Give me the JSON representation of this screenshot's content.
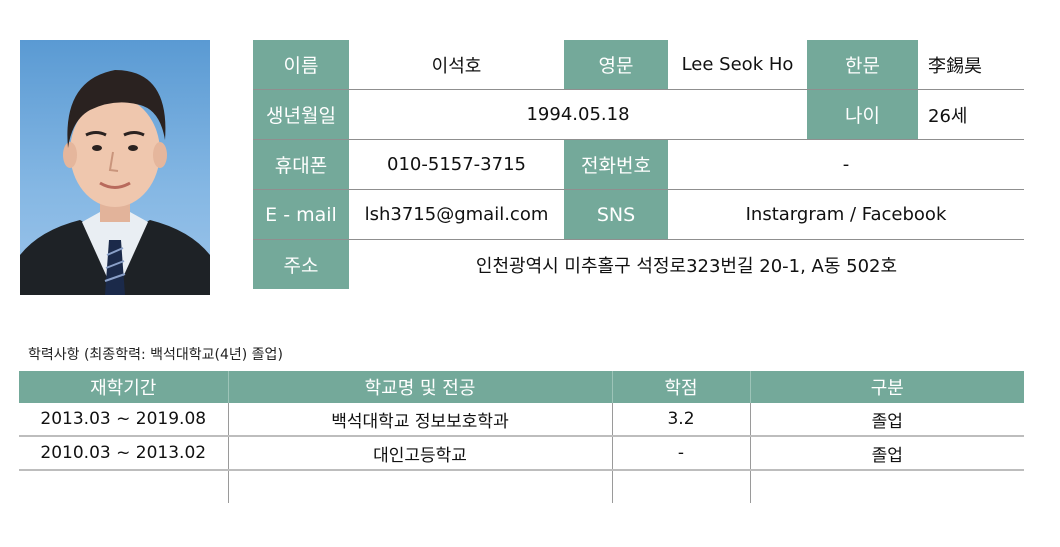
{
  "profile": {
    "name_label": "이름",
    "name": "이석호",
    "eng_label": "영문",
    "eng": "Lee Seok Ho",
    "hanja_label": "한문",
    "hanja": "李錫昊",
    "birth_label": "생년월일",
    "birth": "1994.05.18",
    "age_label": "나이",
    "age": "26세",
    "mobile_label": "휴대폰",
    "mobile": "010-5157-3715",
    "phone_label": "전화번호",
    "phone": "-",
    "email_label": "E - mail",
    "email": "lsh3715@gmail.com",
    "sns_label": "SNS",
    "sns": "Instargram / Facebook",
    "address_label": "주소",
    "address": "인천광역시 미추홀구 석정로323번길 20-1, A동 502호"
  },
  "education": {
    "title": "학력사항 (최종학력: 백석대학교(4년) 졸업)",
    "headers": [
      "재학기간",
      "학교명 및 전공",
      "학점",
      "구분"
    ],
    "rows": [
      [
        "2013.03 ~ 2019.08",
        "백석대학교 정보보호학과",
        "3.2",
        "졸업"
      ],
      [
        "2010.03 ~ 2013.02",
        "대인고등학교",
        "-",
        "졸업"
      ]
    ]
  },
  "colors": {
    "label_bg": "#74a99a",
    "photo_bg": "#6aa6dc"
  },
  "photo": {
    "icon": "person-portrait"
  }
}
